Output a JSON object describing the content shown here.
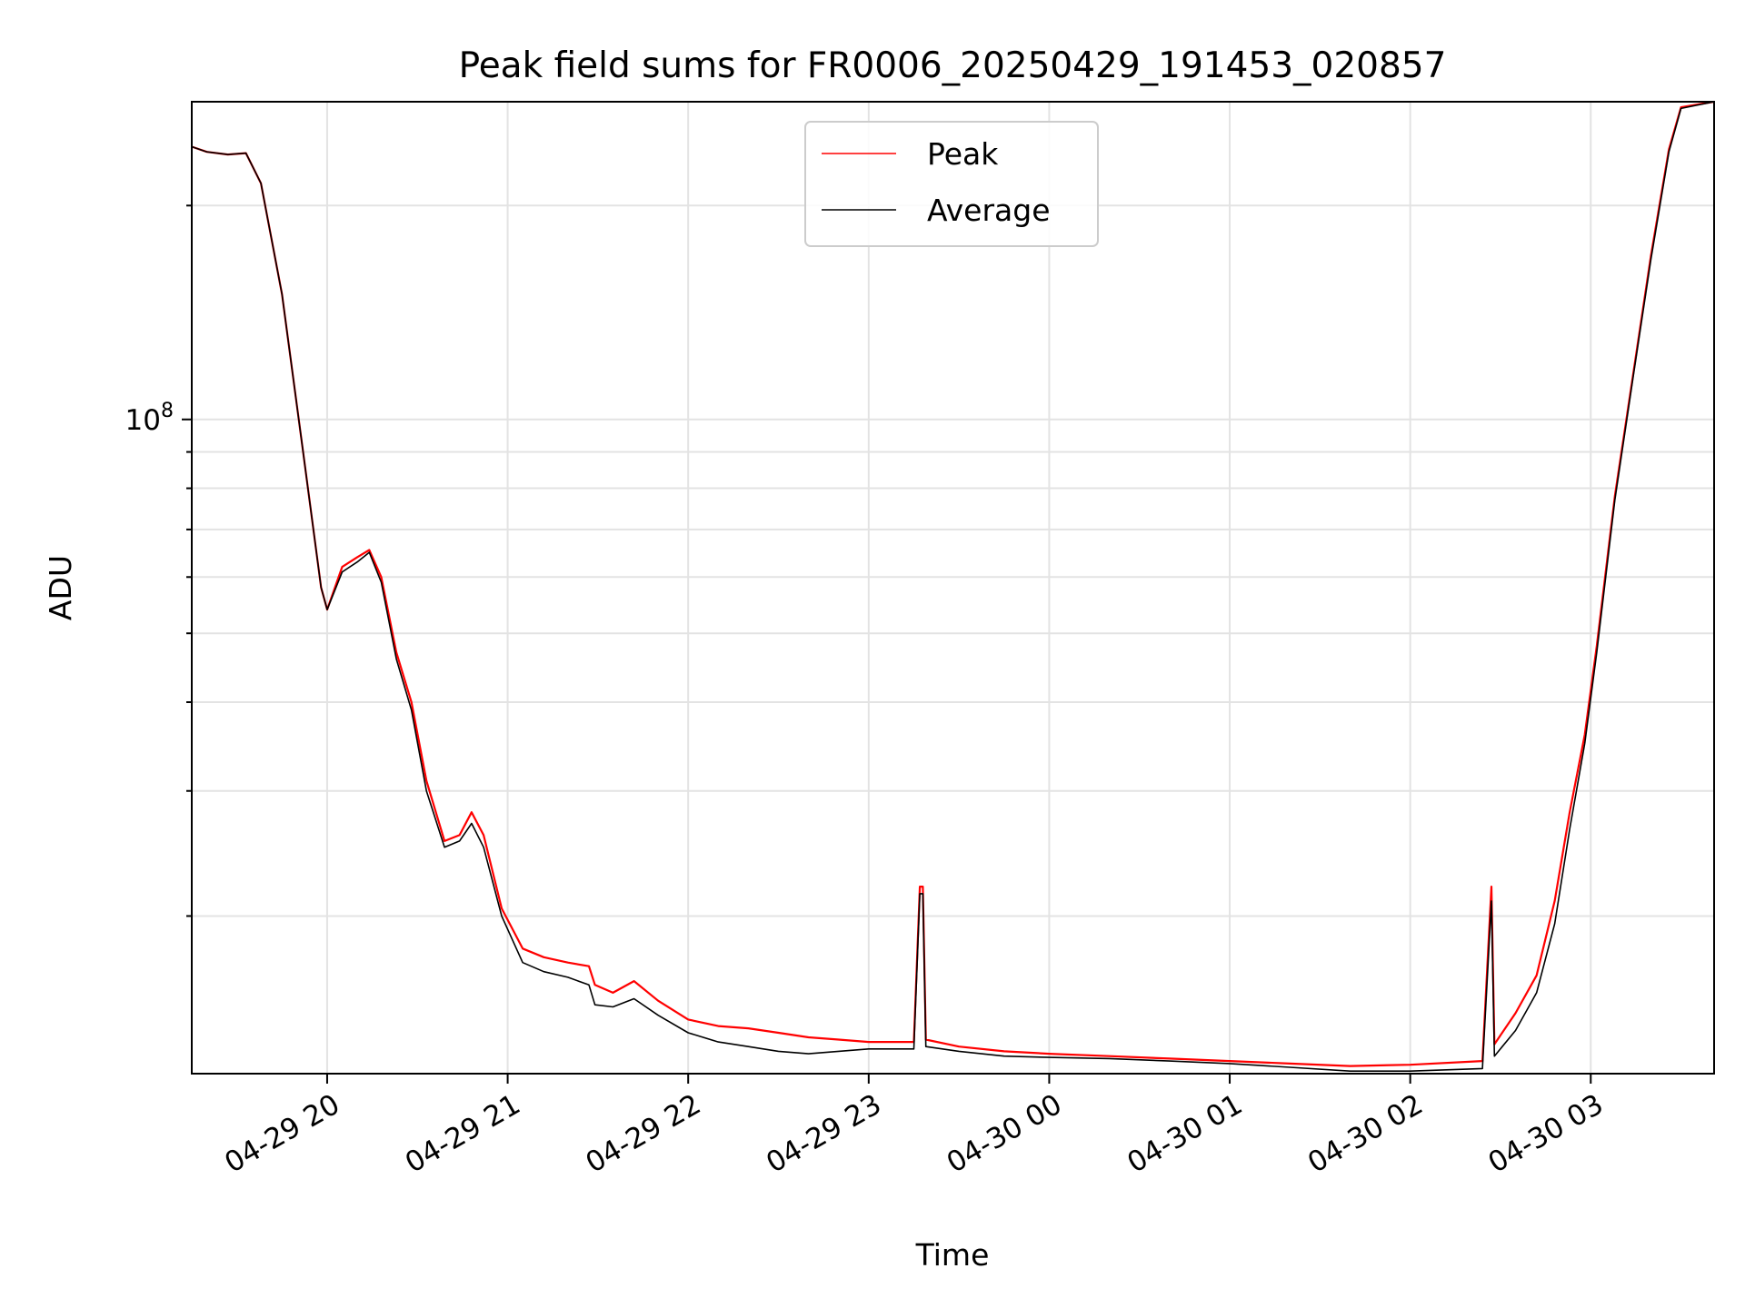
{
  "chart_data": {
    "type": "line",
    "title": "Peak field sums for FR0006_20250429_191453_020857",
    "xlabel": "Time",
    "ylabel": "ADU",
    "y_scale": "log",
    "ylim": [
      12000000,
      280000000
    ],
    "xlim": [
      "2025-04-29 19:15",
      "2025-04-30 03:41"
    ],
    "grid": true,
    "legend_position": "top-center",
    "x_ticks": [
      {
        "t": "2025-04-29 20:00",
        "label": "04-29 20"
      },
      {
        "t": "2025-04-29 21:00",
        "label": "04-29 21"
      },
      {
        "t": "2025-04-29 22:00",
        "label": "04-29 22"
      },
      {
        "t": "2025-04-29 23:00",
        "label": "04-29 23"
      },
      {
        "t": "2025-04-30 00:00",
        "label": "04-30 00"
      },
      {
        "t": "2025-04-30 01:00",
        "label": "04-30 01"
      },
      {
        "t": "2025-04-30 02:00",
        "label": "04-30 02"
      },
      {
        "t": "2025-04-30 03:00",
        "label": "04-30 03"
      }
    ],
    "y_major_ticks": [
      {
        "value": 100000000,
        "label_base": "10",
        "label_exp": "8"
      }
    ],
    "y_minor_ticks": [
      20000000,
      30000000,
      40000000,
      50000000,
      60000000,
      70000000,
      80000000,
      90000000,
      200000000
    ],
    "series": [
      {
        "name": "Peak",
        "color": "#ff0000",
        "points": [
          [
            "2025-04-29 19:15",
            242000000
          ],
          [
            "2025-04-29 19:20",
            238000000
          ],
          [
            "2025-04-29 19:27",
            236000000
          ],
          [
            "2025-04-29 19:33",
            237000000
          ],
          [
            "2025-04-29 19:38",
            215000000
          ],
          [
            "2025-04-29 19:45",
            150000000
          ],
          [
            "2025-04-29 19:52",
            90000000
          ],
          [
            "2025-04-29 19:58",
            58000000
          ],
          [
            "2025-04-29 20:00",
            54000000
          ],
          [
            "2025-04-29 20:05",
            62000000
          ],
          [
            "2025-04-29 20:10",
            64000000
          ],
          [
            "2025-04-29 20:14",
            65500000
          ],
          [
            "2025-04-29 20:18",
            60000000
          ],
          [
            "2025-04-29 20:23",
            47000000
          ],
          [
            "2025-04-29 20:28",
            40000000
          ],
          [
            "2025-04-29 20:33",
            31000000
          ],
          [
            "2025-04-29 20:39",
            25500000
          ],
          [
            "2025-04-29 20:44",
            26000000
          ],
          [
            "2025-04-29 20:48",
            28000000
          ],
          [
            "2025-04-29 20:52",
            26000000
          ],
          [
            "2025-04-29 20:58",
            20500000
          ],
          [
            "2025-04-29 21:05",
            18000000
          ],
          [
            "2025-04-29 21:12",
            17500000
          ],
          [
            "2025-04-29 21:20",
            17200000
          ],
          [
            "2025-04-29 21:27",
            17000000
          ],
          [
            "2025-04-29 21:29",
            16000000
          ],
          [
            "2025-04-29 21:35",
            15600000
          ],
          [
            "2025-04-29 21:42",
            16200000
          ],
          [
            "2025-04-29 21:50",
            15200000
          ],
          [
            "2025-04-29 22:00",
            14300000
          ],
          [
            "2025-04-29 22:10",
            14000000
          ],
          [
            "2025-04-29 22:20",
            13900000
          ],
          [
            "2025-04-29 22:30",
            13700000
          ],
          [
            "2025-04-29 22:40",
            13500000
          ],
          [
            "2025-04-29 22:50",
            13400000
          ],
          [
            "2025-04-29 23:00",
            13300000
          ],
          [
            "2025-04-29 23:15",
            13300000
          ],
          [
            "2025-04-29 23:17",
            22000000
          ],
          [
            "2025-04-29 23:18",
            22000000
          ],
          [
            "2025-04-29 23:19",
            13400000
          ],
          [
            "2025-04-29 23:30",
            13100000
          ],
          [
            "2025-04-29 23:45",
            12900000
          ],
          [
            "2025-04-30 00:00",
            12800000
          ],
          [
            "2025-04-30 00:20",
            12700000
          ],
          [
            "2025-04-30 00:40",
            12600000
          ],
          [
            "2025-04-30 01:00",
            12500000
          ],
          [
            "2025-04-30 01:20",
            12400000
          ],
          [
            "2025-04-30 01:40",
            12300000
          ],
          [
            "2025-04-30 02:00",
            12350000
          ],
          [
            "2025-04-30 02:24",
            12500000
          ],
          [
            "2025-04-30 02:27",
            22000000
          ],
          [
            "2025-04-30 02:28",
            13200000
          ],
          [
            "2025-04-30 02:35",
            14600000
          ],
          [
            "2025-04-30 02:42",
            16500000
          ],
          [
            "2025-04-30 02:48",
            21000000
          ],
          [
            "2025-04-30 02:53",
            28000000
          ],
          [
            "2025-04-30 02:58",
            36000000
          ],
          [
            "2025-04-30 03:02",
            48000000
          ],
          [
            "2025-04-30 03:08",
            78000000
          ],
          [
            "2025-04-30 03:14",
            115000000
          ],
          [
            "2025-04-30 03:20",
            170000000
          ],
          [
            "2025-04-30 03:26",
            240000000
          ],
          [
            "2025-04-30 03:30",
            275000000
          ],
          [
            "2025-04-30 03:41",
            280000000
          ]
        ]
      },
      {
        "name": "Average",
        "color": "#000000",
        "points": [
          [
            "2025-04-29 19:15",
            242000000
          ],
          [
            "2025-04-29 19:20",
            238000000
          ],
          [
            "2025-04-29 19:27",
            236000000
          ],
          [
            "2025-04-29 19:33",
            237000000
          ],
          [
            "2025-04-29 19:38",
            215000000
          ],
          [
            "2025-04-29 19:45",
            150000000
          ],
          [
            "2025-04-29 19:52",
            90000000
          ],
          [
            "2025-04-29 19:58",
            58000000
          ],
          [
            "2025-04-29 20:00",
            54000000
          ],
          [
            "2025-04-29 20:05",
            61000000
          ],
          [
            "2025-04-29 20:10",
            63000000
          ],
          [
            "2025-04-29 20:14",
            65000000
          ],
          [
            "2025-04-29 20:18",
            59000000
          ],
          [
            "2025-04-29 20:23",
            46000000
          ],
          [
            "2025-04-29 20:28",
            39000000
          ],
          [
            "2025-04-29 20:33",
            30000000
          ],
          [
            "2025-04-29 20:39",
            25000000
          ],
          [
            "2025-04-29 20:44",
            25500000
          ],
          [
            "2025-04-29 20:48",
            27000000
          ],
          [
            "2025-04-29 20:52",
            25000000
          ],
          [
            "2025-04-29 20:58",
            20000000
          ],
          [
            "2025-04-29 21:05",
            17200000
          ],
          [
            "2025-04-29 21:12",
            16700000
          ],
          [
            "2025-04-29 21:20",
            16400000
          ],
          [
            "2025-04-29 21:27",
            16000000
          ],
          [
            "2025-04-29 21:29",
            15000000
          ],
          [
            "2025-04-29 21:35",
            14900000
          ],
          [
            "2025-04-29 21:42",
            15300000
          ],
          [
            "2025-04-29 21:50",
            14500000
          ],
          [
            "2025-04-29 22:00",
            13700000
          ],
          [
            "2025-04-29 22:10",
            13300000
          ],
          [
            "2025-04-29 22:20",
            13100000
          ],
          [
            "2025-04-29 22:30",
            12900000
          ],
          [
            "2025-04-29 22:40",
            12800000
          ],
          [
            "2025-04-29 22:50",
            12900000
          ],
          [
            "2025-04-29 23:00",
            13000000
          ],
          [
            "2025-04-29 23:15",
            13000000
          ],
          [
            "2025-04-29 23:17",
            21500000
          ],
          [
            "2025-04-29 23:18",
            21500000
          ],
          [
            "2025-04-29 23:19",
            13100000
          ],
          [
            "2025-04-29 23:30",
            12900000
          ],
          [
            "2025-04-29 23:45",
            12700000
          ],
          [
            "2025-04-30 00:00",
            12650000
          ],
          [
            "2025-04-30 00:20",
            12600000
          ],
          [
            "2025-04-30 00:40",
            12500000
          ],
          [
            "2025-04-30 01:00",
            12400000
          ],
          [
            "2025-04-30 01:20",
            12250000
          ],
          [
            "2025-04-30 01:40",
            12100000
          ],
          [
            "2025-04-30 02:00",
            12100000
          ],
          [
            "2025-04-30 02:24",
            12200000
          ],
          [
            "2025-04-30 02:27",
            21000000
          ],
          [
            "2025-04-30 02:28",
            12700000
          ],
          [
            "2025-04-30 02:35",
            13800000
          ],
          [
            "2025-04-30 02:42",
            15600000
          ],
          [
            "2025-04-30 02:48",
            19500000
          ],
          [
            "2025-04-30 02:53",
            26500000
          ],
          [
            "2025-04-30 02:58",
            35000000
          ],
          [
            "2025-04-30 03:02",
            47000000
          ],
          [
            "2025-04-30 03:08",
            77000000
          ],
          [
            "2025-04-30 03:14",
            114000000
          ],
          [
            "2025-04-30 03:20",
            168000000
          ],
          [
            "2025-04-30 03:26",
            238000000
          ],
          [
            "2025-04-30 03:30",
            274000000
          ],
          [
            "2025-04-30 03:41",
            280000000
          ]
        ]
      }
    ]
  }
}
